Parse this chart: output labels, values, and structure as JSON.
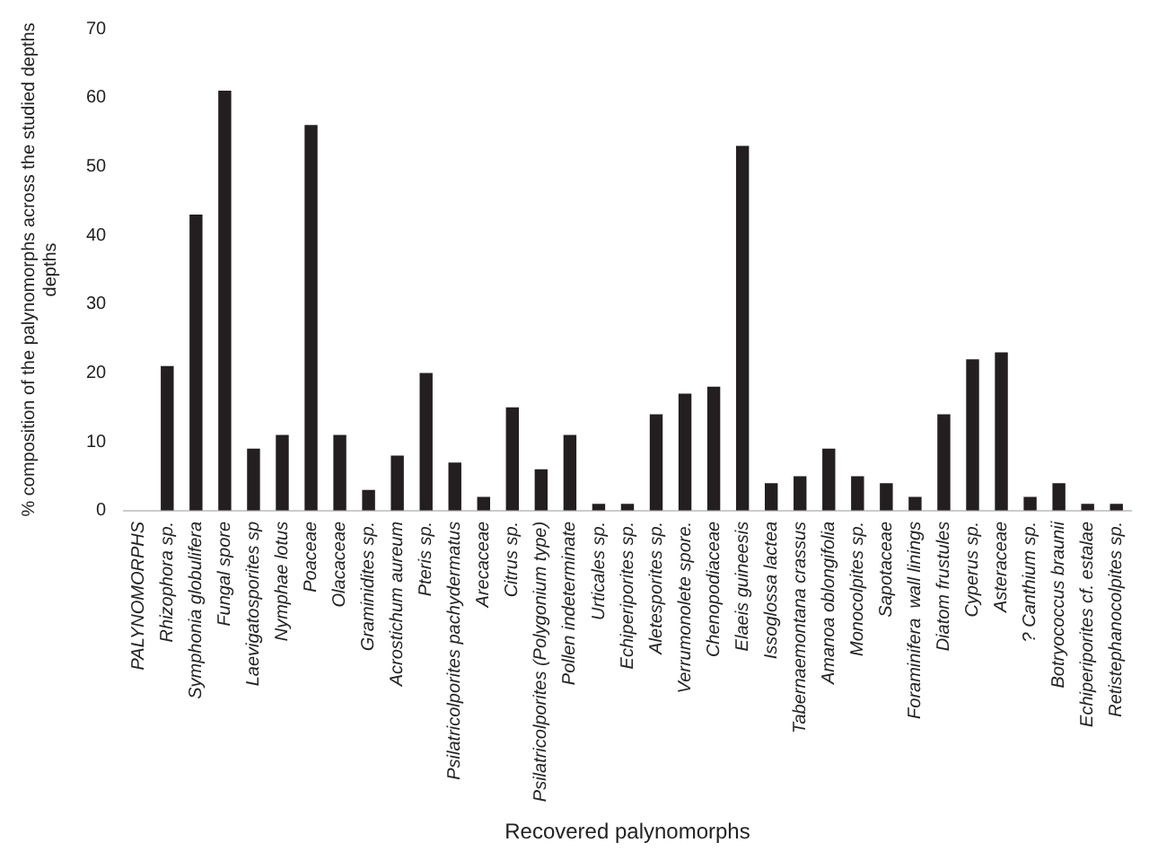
{
  "chart_data": {
    "type": "bar",
    "xlabel": "Recovered palynomorphs",
    "ylabel": "% composition of the palynomorphs across the studied depths depths",
    "categories": [
      "PALYNOMORPHS",
      "Rhizophora sp.",
      "Symphonia globulifera",
      "Fungal spore",
      "Laevigatosporites sp",
      "Nymphae lotus",
      "Poaceae",
      "Olacaceae",
      "Graminidites sp.",
      "Acrostichum aureum",
      "Pteris sp.",
      "Psilatricolporites pachydermatus",
      "Arecaceae",
      "Citrus sp.",
      "Psilatricolporites (Polygonium type)",
      "Pollen indeterminate",
      "Urticales sp.",
      "Echiperiporites sp.",
      "Aletesporites sp.",
      "Verrumonolete spore.",
      "Chenopodiaceae",
      "Elaeis guineesis",
      "Issoglossa lactea",
      "Tabernaemontana crassus",
      "Amanoa oblongifolia",
      "Monocolpites sp.",
      "Sapotaceae",
      "Foraminifera  wall linings",
      "Diatom frustules",
      "Cyperus sp.",
      "Asteraceae",
      "? Canthium sp.",
      "Botryococcus braunii",
      "Echiperiporites cf. estalae",
      "Retistephanocolpites sp."
    ],
    "values": [
      null,
      21,
      43,
      61,
      9,
      11,
      56,
      11,
      3,
      8,
      20,
      7,
      2,
      15,
      6,
      11,
      1,
      1,
      14,
      17,
      18,
      53,
      4,
      5,
      9,
      5,
      4,
      2,
      14,
      22,
      23,
      2,
      4,
      1,
      1
    ],
    "color": "#231f20",
    "ylim": [
      0,
      70
    ],
    "yticks": [
      0,
      10,
      20,
      30,
      40,
      50,
      60,
      70
    ],
    "grid": false,
    "legend": false
  }
}
